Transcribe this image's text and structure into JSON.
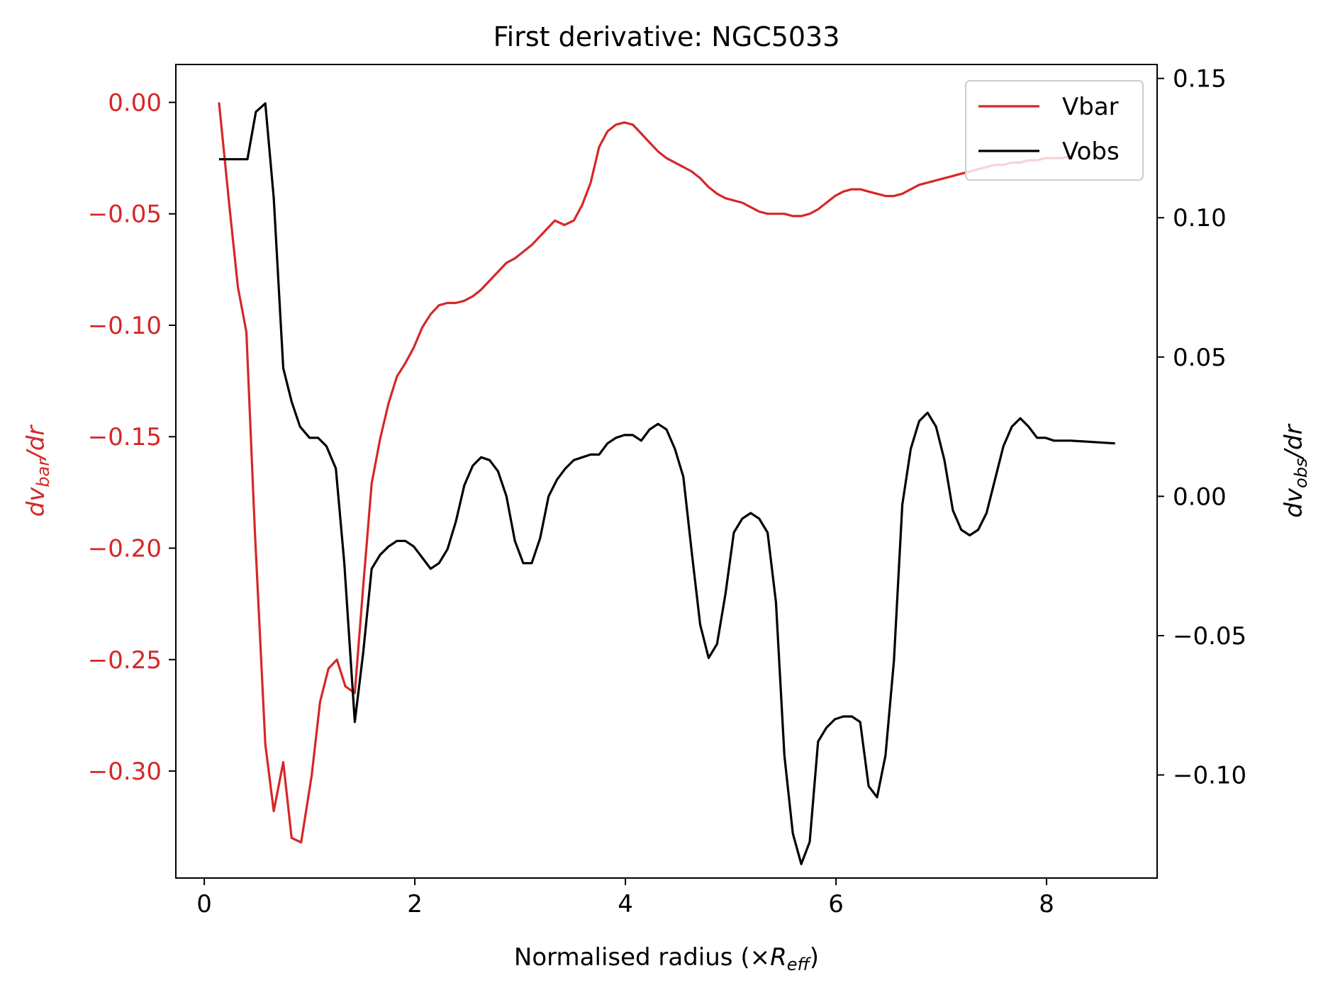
{
  "chart_data": {
    "type": "line",
    "title": "First derivative: NGC5033",
    "xlabel_main": "Normalised radius (×",
    "xlabel_sym": "R",
    "xlabel_sub": "eff",
    "xlabel_close": ")",
    "ylabel_left": {
      "pre": "dv",
      "sub": "bar",
      "post": "/dr"
    },
    "ylabel_right": {
      "pre": "dv",
      "sub": "obs",
      "post": "/dr"
    },
    "xlim": [
      -0.27,
      9.05
    ],
    "ylim_left": [
      -0.348,
      0.017
    ],
    "ylim_right": [
      -0.137,
      0.155
    ],
    "x_ticks": [
      0,
      2,
      4,
      6,
      8
    ],
    "x_tick_labels": [
      "0",
      "2",
      "4",
      "6",
      "8"
    ],
    "y_left_ticks": [
      0.0,
      -0.05,
      -0.1,
      -0.15,
      -0.2,
      -0.25,
      -0.3
    ],
    "y_left_tick_labels": [
      "0.00",
      "−0.05",
      "−0.10",
      "−0.15",
      "−0.20",
      "−0.25",
      "−0.30"
    ],
    "y_right_ticks": [
      0.15,
      0.1,
      0.05,
      0.0,
      -0.05,
      -0.1
    ],
    "y_right_tick_labels": [
      "0.15",
      "0.10",
      "0.05",
      "0.00",
      "−0.05",
      "−0.10"
    ],
    "legend_position": "top-right",
    "colors": {
      "vbar": "#d62728",
      "vobs": "#000000",
      "left_axis": "#d62728"
    },
    "series": [
      {
        "name": "Vbar",
        "axis": "left",
        "x": [
          0.14,
          0.24,
          0.32,
          0.4,
          0.48,
          0.58,
          0.66,
          0.75,
          0.83,
          0.92,
          1.02,
          1.1,
          1.18,
          1.26,
          1.34,
          1.43,
          1.51,
          1.59,
          1.67,
          1.75,
          1.83,
          1.91,
          1.99,
          2.07,
          2.15,
          2.23,
          2.31,
          2.39,
          2.47,
          2.55,
          2.63,
          2.71,
          2.79,
          2.87,
          2.95,
          3.03,
          3.11,
          3.19,
          3.27,
          3.33,
          3.42,
          3.51,
          3.59,
          3.67,
          3.75,
          3.83,
          3.91,
          3.99,
          4.07,
          4.15,
          4.23,
          4.31,
          4.39,
          4.47,
          4.55,
          4.63,
          4.71,
          4.79,
          4.87,
          4.95,
          5.03,
          5.11,
          5.19,
          5.27,
          5.35,
          5.43,
          5.51,
          5.59,
          5.67,
          5.75,
          5.83,
          5.91,
          5.99,
          6.07,
          6.15,
          6.23,
          6.31,
          6.39,
          6.47,
          6.55,
          6.63,
          6.71,
          6.79,
          6.87,
          6.95,
          7.03,
          7.11,
          7.19,
          7.27,
          7.35,
          7.43,
          7.51,
          7.59,
          7.67,
          7.75,
          7.83,
          7.91,
          7.99,
          8.07,
          8.15,
          8.23
        ],
        "values": [
          0.0,
          -0.047,
          -0.083,
          -0.103,
          -0.192,
          -0.288,
          -0.318,
          -0.296,
          -0.33,
          -0.332,
          -0.302,
          -0.269,
          -0.254,
          -0.25,
          -0.262,
          -0.265,
          -0.217,
          -0.171,
          -0.151,
          -0.135,
          -0.123,
          -0.117,
          -0.11,
          -0.101,
          -0.095,
          -0.091,
          -0.09,
          -0.09,
          -0.089,
          -0.087,
          -0.084,
          -0.08,
          -0.076,
          -0.072,
          -0.07,
          -0.067,
          -0.064,
          -0.06,
          -0.056,
          -0.053,
          -0.055,
          -0.053,
          -0.046,
          -0.036,
          -0.02,
          -0.013,
          -0.01,
          -0.009,
          -0.01,
          -0.014,
          -0.018,
          -0.022,
          -0.025,
          -0.027,
          -0.029,
          -0.031,
          -0.034,
          -0.038,
          -0.041,
          -0.043,
          -0.044,
          -0.045,
          -0.047,
          -0.049,
          -0.05,
          -0.05,
          -0.05,
          -0.051,
          -0.051,
          -0.05,
          -0.048,
          -0.045,
          -0.042,
          -0.04,
          -0.039,
          -0.039,
          -0.04,
          -0.041,
          -0.042,
          -0.042,
          -0.041,
          -0.039,
          -0.037,
          -0.036,
          -0.035,
          -0.034,
          -0.033,
          -0.032,
          -0.031,
          -0.03,
          -0.029,
          -0.028,
          -0.028,
          -0.027,
          -0.027,
          -0.026,
          -0.026,
          -0.025,
          -0.025,
          -0.025,
          -0.024
        ]
      },
      {
        "name": "Vobs",
        "axis": "right",
        "x": [
          0.14,
          0.24,
          0.32,
          0.41,
          0.49,
          0.58,
          0.66,
          0.75,
          0.83,
          0.91,
          1.0,
          1.08,
          1.16,
          1.25,
          1.33,
          1.43,
          1.51,
          1.59,
          1.67,
          1.75,
          1.83,
          1.91,
          1.99,
          2.07,
          2.15,
          2.23,
          2.31,
          2.39,
          2.47,
          2.55,
          2.63,
          2.71,
          2.79,
          2.87,
          2.95,
          3.03,
          3.11,
          3.19,
          3.27,
          3.35,
          3.43,
          3.51,
          3.59,
          3.67,
          3.75,
          3.83,
          3.91,
          3.99,
          4.07,
          4.15,
          4.23,
          4.31,
          4.39,
          4.47,
          4.55,
          4.63,
          4.71,
          4.79,
          4.87,
          4.95,
          5.03,
          5.11,
          5.19,
          5.27,
          5.35,
          5.43,
          5.51,
          5.59,
          5.67,
          5.75,
          5.83,
          5.91,
          5.99,
          6.07,
          6.15,
          6.23,
          6.31,
          6.39,
          6.47,
          6.55,
          6.63,
          6.71,
          6.79,
          6.87,
          6.95,
          7.03,
          7.11,
          7.19,
          7.27,
          7.35,
          7.43,
          7.51,
          7.59,
          7.67,
          7.75,
          7.83,
          7.91,
          7.99,
          8.07,
          8.15,
          8.23,
          8.65
        ],
        "values": [
          0.121,
          0.121,
          0.121,
          0.121,
          0.138,
          0.141,
          0.107,
          0.046,
          0.034,
          0.025,
          0.021,
          0.021,
          0.018,
          0.01,
          -0.024,
          -0.081,
          -0.056,
          -0.026,
          -0.021,
          -0.018,
          -0.016,
          -0.016,
          -0.018,
          -0.022,
          -0.026,
          -0.024,
          -0.019,
          -0.009,
          0.004,
          0.011,
          0.014,
          0.013,
          0.009,
          0.0,
          -0.016,
          -0.024,
          -0.024,
          -0.015,
          0.0,
          0.006,
          0.01,
          0.013,
          0.014,
          0.015,
          0.015,
          0.019,
          0.021,
          0.022,
          0.022,
          0.02,
          0.024,
          0.026,
          0.024,
          0.017,
          0.007,
          -0.02,
          -0.046,
          -0.058,
          -0.053,
          -0.035,
          -0.013,
          -0.008,
          -0.006,
          -0.008,
          -0.013,
          -0.038,
          -0.093,
          -0.121,
          -0.132,
          -0.124,
          -0.088,
          -0.083,
          -0.08,
          -0.079,
          -0.079,
          -0.081,
          -0.104,
          -0.108,
          -0.093,
          -0.059,
          -0.003,
          0.017,
          0.027,
          0.03,
          0.025,
          0.013,
          -0.005,
          -0.012,
          -0.014,
          -0.012,
          -0.006,
          0.006,
          0.018,
          0.025,
          0.028,
          0.025,
          0.021,
          0.021,
          0.02,
          0.02,
          0.02,
          0.019
        ]
      }
    ]
  }
}
